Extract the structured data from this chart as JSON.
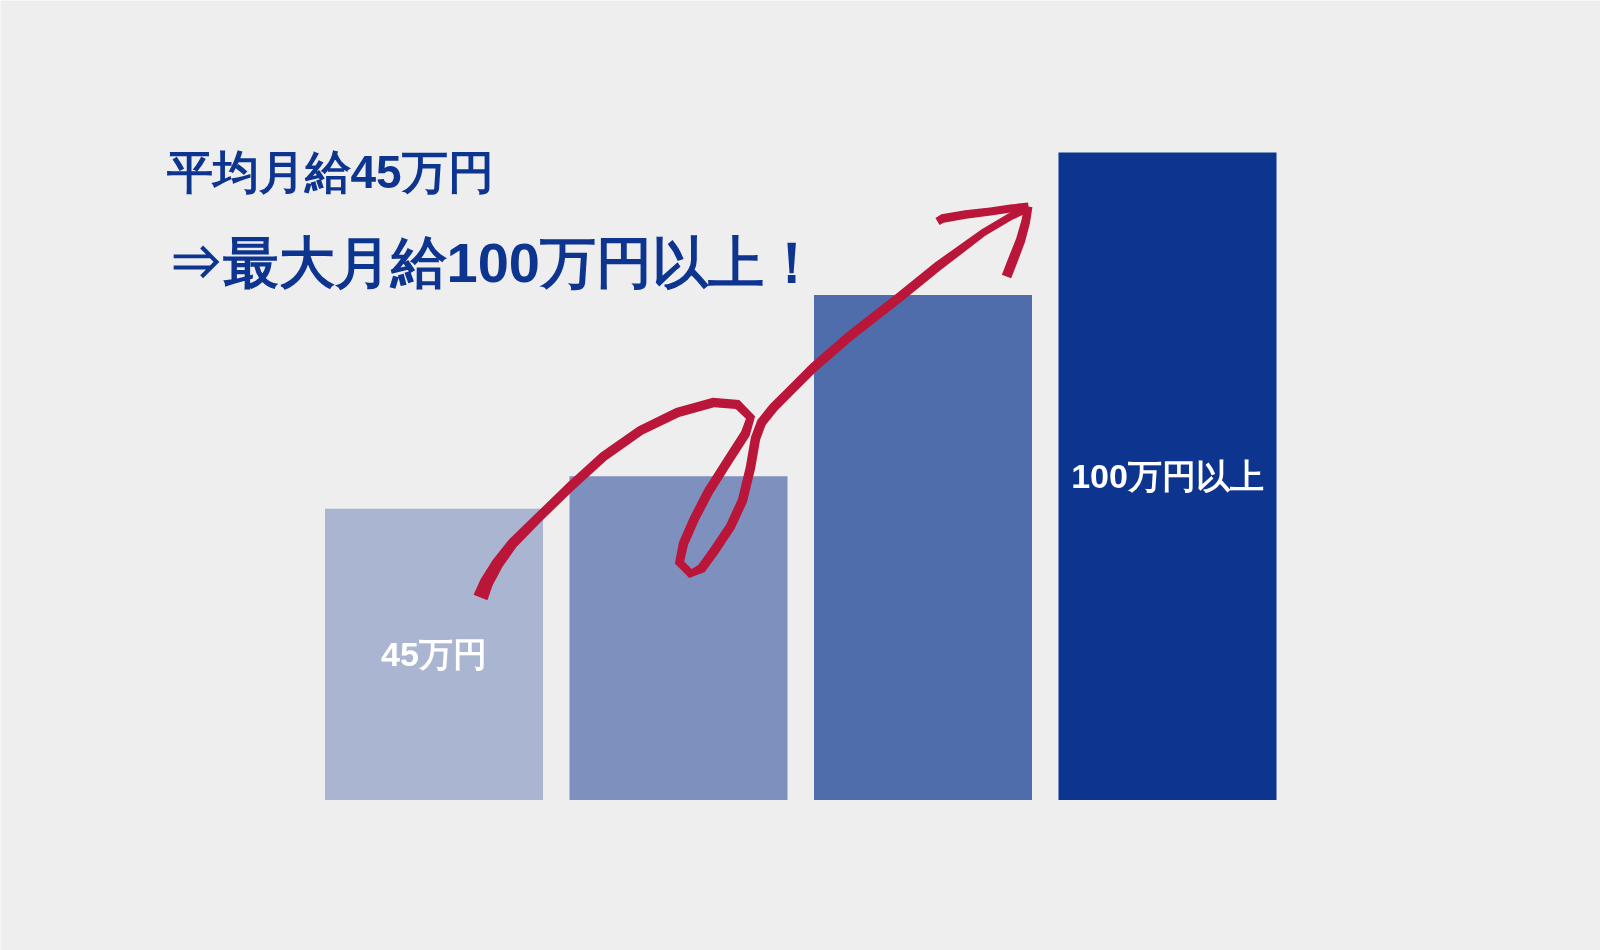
{
  "chart_data": {
    "type": "bar",
    "title": "平均月給45万円",
    "subtitle": "⇒最大月給100万円以上！",
    "categories": [
      null,
      null,
      null,
      null
    ],
    "values": [
      45,
      50,
      78,
      100
    ],
    "colors": [
      "#aab5d2",
      "#7e90be",
      "#4f6dab",
      "#0d3590"
    ],
    "value_labels": [
      "45万円",
      null,
      null,
      "100万円以上"
    ]
  }
}
